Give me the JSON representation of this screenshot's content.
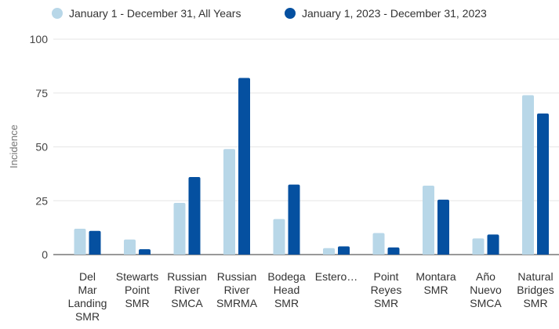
{
  "chart_data": {
    "type": "bar",
    "title": "",
    "xlabel": "",
    "ylabel": "Incidence",
    "ylim": [
      0,
      100
    ],
    "yticks": [
      0,
      25,
      50,
      75,
      100
    ],
    "grid": true,
    "legend_position": "top",
    "categories": [
      [
        "Del",
        "Mar",
        "Landing",
        "SMR"
      ],
      [
        "Stewarts",
        "Point",
        "SMR"
      ],
      [
        "Russian",
        "River",
        "SMCA"
      ],
      [
        "Russian",
        "River",
        "SMRMA"
      ],
      [
        "Bodega",
        "Head",
        "SMR"
      ],
      [
        "Estero…"
      ],
      [
        "Point",
        "Reyes",
        "SMR"
      ],
      [
        "Montara",
        "SMR"
      ],
      [
        "Año",
        "Nuevo",
        "SMCA"
      ],
      [
        "Natural",
        "Bridges",
        "SMR"
      ]
    ],
    "series": [
      {
        "name": "January 1 - December 31, All Years",
        "color": "#b8d7e8",
        "values": [
          12,
          7,
          24,
          49,
          16.5,
          3,
          10,
          32,
          7.5,
          74
        ]
      },
      {
        "name": "January 1, 2023 - December 31, 2023",
        "color": "#0550a0",
        "values": [
          11,
          2.5,
          36,
          82,
          32.5,
          3.8,
          3.3,
          25.5,
          9.3,
          65.5
        ]
      }
    ]
  }
}
